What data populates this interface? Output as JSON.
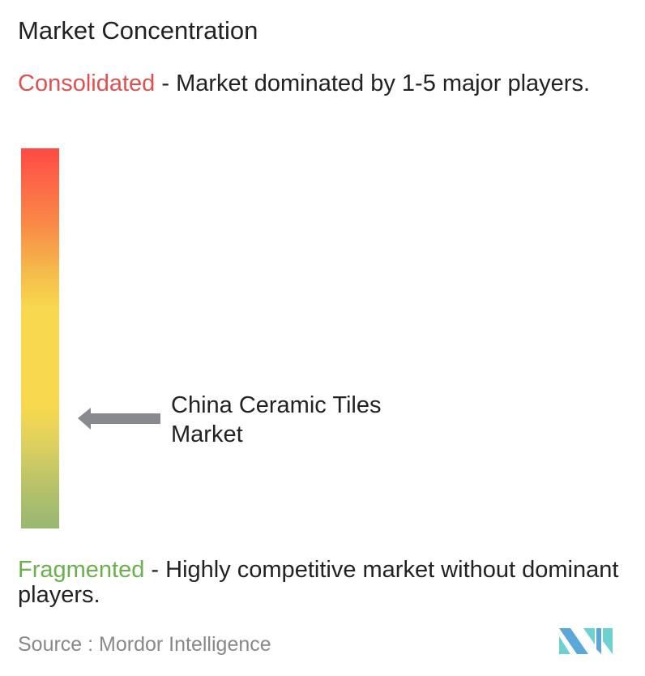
{
  "title": "Market Concentration",
  "consolidated": {
    "keyword": "Consolidated",
    "description": " - Market dominated by 1-5 major players."
  },
  "fragmented": {
    "keyword": "Fragmented",
    "description": " - Highly competitive market without dominant players."
  },
  "marker": {
    "label": "China Ceramic Tiles Market",
    "level": "moderately fragmented (about 27% toward consolidated)"
  },
  "source": "Source :  Mordor Intelligence",
  "colors": {
    "consolidated": "#e05050",
    "fragmented": "#6ab04c",
    "arrow": "#888a90",
    "logo": [
      "#5aa8d8",
      "#6fd0d0"
    ]
  },
  "logo_text": "Mordor Intelligence"
}
